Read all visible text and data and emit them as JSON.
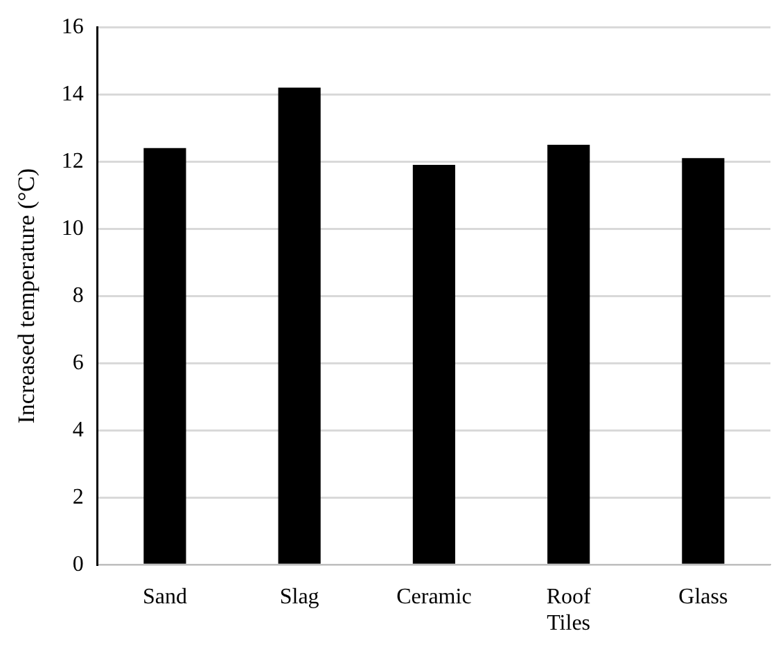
{
  "chart_data": {
    "type": "bar",
    "ylabel": "Increased temperature (°C)",
    "categories": [
      "Sand",
      "Slag",
      "Ceramic",
      "Roof Tiles",
      "Glass"
    ],
    "values": [
      12.4,
      14.2,
      11.9,
      12.5,
      12.1
    ],
    "color": "#000000",
    "ylim": [
      0,
      16
    ],
    "yticks": [
      0,
      2,
      4,
      6,
      8,
      10,
      12,
      14,
      16
    ],
    "grid": "y"
  }
}
